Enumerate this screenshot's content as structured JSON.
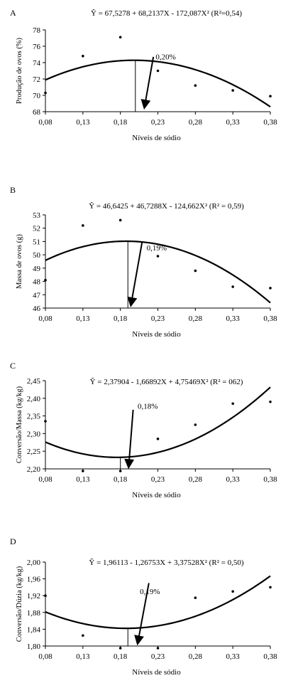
{
  "chart_data": [
    {
      "type": "scatter",
      "panel_label": "A",
      "equation": "Ŷ = 67,5278 + 68,2137X - 172,087X² (R²=0,54)",
      "xlabel": "Níveis de sódio",
      "ylabel": "Produção de ovos (%)",
      "x_tick_labels": [
        "0,08",
        "0,13",
        "0,18",
        "0,23",
        "0,28",
        "0,33",
        "0,38"
      ],
      "y_tick_labels": [
        "68",
        "70",
        "72",
        "74",
        "76",
        "78"
      ],
      "xlim": [
        0.08,
        0.38
      ],
      "ylim": [
        68,
        78
      ],
      "points": [
        {
          "x": 0.08,
          "y": 70.3
        },
        {
          "x": 0.13,
          "y": 74.8
        },
        {
          "x": 0.18,
          "y": 77.1
        },
        {
          "x": 0.23,
          "y": 73.0
        },
        {
          "x": 0.28,
          "y": 71.2
        },
        {
          "x": 0.33,
          "y": 70.6
        },
        {
          "x": 0.38,
          "y": 69.9
        }
      ],
      "curve": {
        "a": 67.5278,
        "b": 68.2137,
        "c": -172.087
      },
      "optimum_x": 0.2,
      "annotation": "0,20%"
    },
    {
      "type": "scatter",
      "panel_label": "B",
      "equation": "Ŷ = 46,6425 + 46,7288X - 124,662X² (R² = 0,59)",
      "xlabel": "Níveis de sódio",
      "ylabel": "Massa de ovos (g)",
      "x_tick_labels": [
        "0,08",
        "0,13",
        "0,18",
        "0,23",
        "0,28",
        "0,33",
        "0,38"
      ],
      "y_tick_labels": [
        "46",
        "47",
        "48",
        "49",
        "50",
        "51",
        "52",
        "53"
      ],
      "xlim": [
        0.08,
        0.38
      ],
      "ylim": [
        46,
        53
      ],
      "points": [
        {
          "x": 0.08,
          "y": 48.1
        },
        {
          "x": 0.13,
          "y": 52.2
        },
        {
          "x": 0.18,
          "y": 52.6
        },
        {
          "x": 0.23,
          "y": 49.9
        },
        {
          "x": 0.28,
          "y": 48.8
        },
        {
          "x": 0.33,
          "y": 47.6
        },
        {
          "x": 0.38,
          "y": 47.5
        }
      ],
      "curve": {
        "a": 46.6425,
        "b": 46.7288,
        "c": -124.662
      },
      "optimum_x": 0.19,
      "annotation": "0,19%"
    },
    {
      "type": "scatter",
      "panel_label": "C",
      "equation": "Ŷ = 2,37904 - 1,66892X + 4,75469X² (R² = 062)",
      "xlabel": "Níveis de sódio",
      "ylabel": "Conversão/Massa (kg/kg)",
      "x_tick_labels": [
        "0,08",
        "0,13",
        "0,18",
        "0,23",
        "0,28",
        "0,33",
        "0,38"
      ],
      "y_tick_labels": [
        "2,20",
        "2,25",
        "2,30",
        "2,35",
        "2,40",
        "2,45"
      ],
      "xlim": [
        0.08,
        0.38
      ],
      "ylim": [
        2.2,
        2.45
      ],
      "points": [
        {
          "x": 0.08,
          "y": 2.335
        },
        {
          "x": 0.13,
          "y": 2.19
        },
        {
          "x": 0.18,
          "y": 2.185
        },
        {
          "x": 0.23,
          "y": 2.285
        },
        {
          "x": 0.28,
          "y": 2.325
        },
        {
          "x": 0.33,
          "y": 2.385
        },
        {
          "x": 0.38,
          "y": 2.39
        }
      ],
      "curve": {
        "a": 2.37904,
        "b": -1.66892,
        "c": 4.75469
      },
      "optimum_x": 0.18,
      "annotation": "0,18%"
    },
    {
      "type": "scatter",
      "panel_label": "D",
      "equation": "Ŷ = 1,96113 - 1,26753X + 3,37528X² (R² = 0,50)",
      "xlabel": "Níveis de sódio",
      "ylabel": "Conversão/Dúzia (kg/kg)",
      "x_tick_labels": [
        "0,08",
        "0,13",
        "0,18",
        "0,23",
        "0,28",
        "0,33",
        "0,38"
      ],
      "y_tick_labels": [
        "1,80",
        "1,84",
        "1,88",
        "1,92",
        "1,96",
        "2,00"
      ],
      "xlim": [
        0.08,
        0.38
      ],
      "ylim": [
        1.8,
        2.0
      ],
      "points": [
        {
          "x": 0.08,
          "y": 1.92
        },
        {
          "x": 0.13,
          "y": 1.825
        },
        {
          "x": 0.18,
          "y": 1.79
        },
        {
          "x": 0.23,
          "y": 1.79
        },
        {
          "x": 0.28,
          "y": 1.915
        },
        {
          "x": 0.33,
          "y": 1.93
        },
        {
          "x": 0.38,
          "y": 1.94
        }
      ],
      "curve": {
        "a": 1.96113,
        "b": -1.26753,
        "c": 3.37528
      },
      "optimum_x": 0.19,
      "annotation": "0,19%"
    }
  ]
}
